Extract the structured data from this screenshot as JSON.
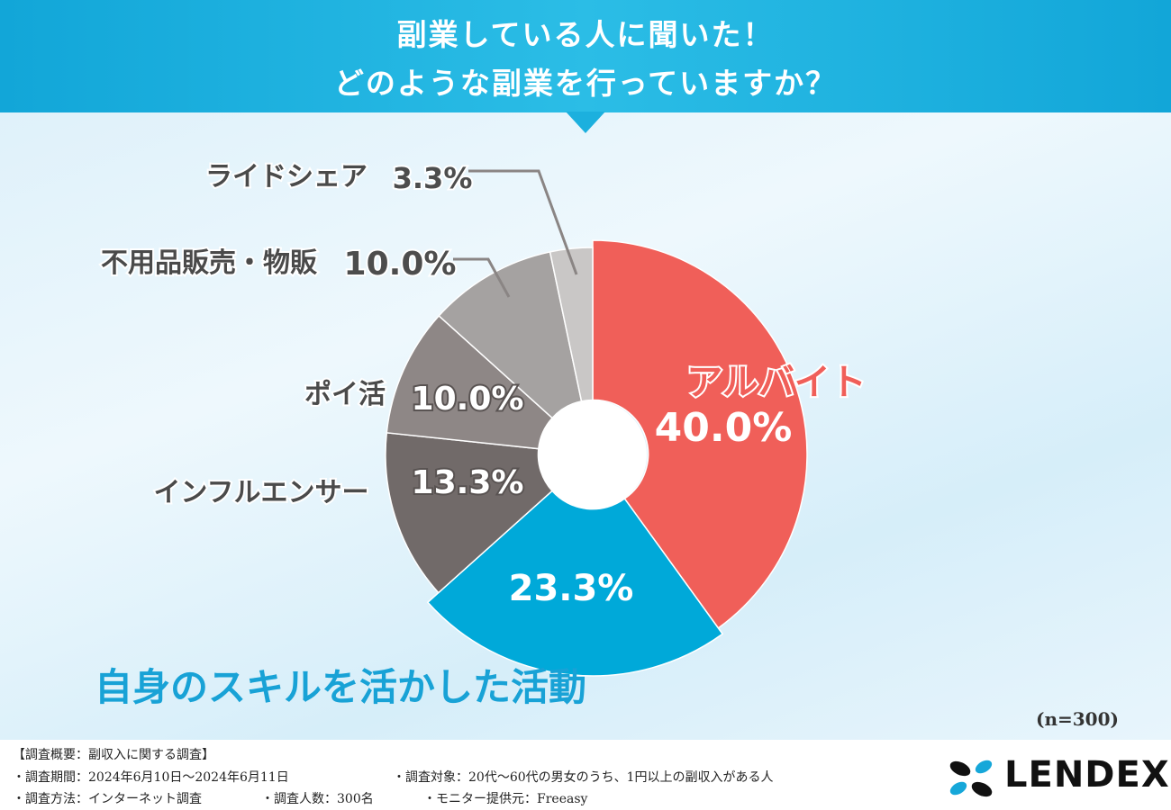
{
  "header": {
    "title_line1": "副業している人に聞いた！",
    "title_line2": "どのような副業を行っていますか？",
    "banner_color": "#1aaedc"
  },
  "chart_data": {
    "type": "pie",
    "variant": "donut",
    "slices": [
      {
        "label": "アルバイト",
        "value": 40.0,
        "value_text": "40.0%",
        "color": "#f05f59",
        "label_color": "#f05f59"
      },
      {
        "label": "",
        "value": 23.3,
        "value_text": "23.3%",
        "color": "#00a9d9"
      },
      {
        "label": "インフルエンサー",
        "value": 13.3,
        "value_text": "13.3%",
        "color": "#716a69"
      },
      {
        "label": "ポイ活",
        "value": 10.0,
        "value_text": "10.0%",
        "color": "#8e8786"
      },
      {
        "label": "不用品販売・物販",
        "value": 10.0,
        "value_text": "10.0%",
        "color": "#a5a2a1"
      },
      {
        "label": "ライドシェア",
        "value": 3.3,
        "value_text": "3.3%",
        "color": "#c9c7c6"
      }
    ],
    "callout": "自身のスキルを活かした活動",
    "sample_size": "(n=300)"
  },
  "footer": {
    "survey_heading": "【調査概要：副収入に関する調査】",
    "period": "・調査期間：2024年6月10日〜2024年6月11日",
    "target": "・調査対象：20代〜60代の男女のうち、1円以上の副収入がある人",
    "method": "・調査方法：インターネット調査",
    "respondents": "・調査人数：300名",
    "provider": "・モニター提供元：Freeasy",
    "logo_text": "LENDEX"
  }
}
